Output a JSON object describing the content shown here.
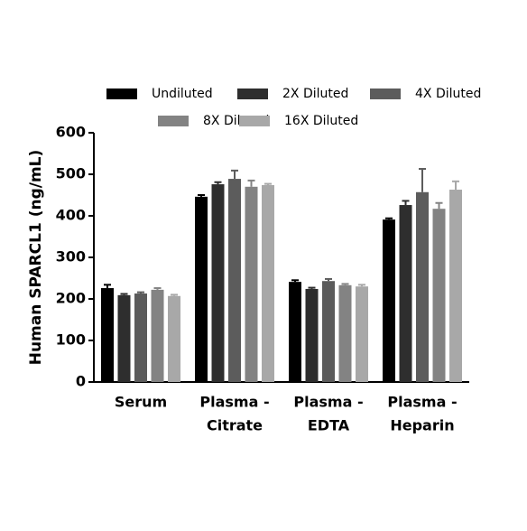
{
  "chart_data": {
    "type": "bar",
    "y_label": "Human SPARCL1 (ng/mL)",
    "categories": [
      [
        "Serum"
      ],
      [
        "Plasma -",
        "Citrate"
      ],
      [
        "Plasma -",
        "EDTA"
      ],
      [
        "Plasma -",
        "Heparin"
      ]
    ],
    "series": [
      {
        "name": "Undiluted",
        "color": "#000000",
        "values": [
          226,
          446,
          241,
          391
        ],
        "errors": [
          8,
          4,
          4,
          3
        ]
      },
      {
        "name": "2X Diluted",
        "color": "#2e2e2e",
        "values": [
          209,
          476,
          224,
          426
        ],
        "errors": [
          3,
          5,
          3,
          10
        ]
      },
      {
        "name": "4X Diluted",
        "color": "#5c5c5c",
        "values": [
          213,
          489,
          243,
          457
        ],
        "errors": [
          3,
          20,
          5,
          56
        ]
      },
      {
        "name": "8X Diluted",
        "color": "#838383",
        "values": [
          222,
          470,
          233,
          417
        ],
        "errors": [
          4,
          15,
          3,
          14
        ]
      },
      {
        "name": "16X Diluted",
        "color": "#a8a8a8",
        "values": [
          207,
          474,
          230,
          463
        ],
        "errors": [
          3,
          3,
          4,
          20
        ]
      }
    ],
    "ylim": [
      0,
      600
    ],
    "yticks": [
      0,
      100,
      200,
      300,
      400,
      500,
      600
    ]
  }
}
